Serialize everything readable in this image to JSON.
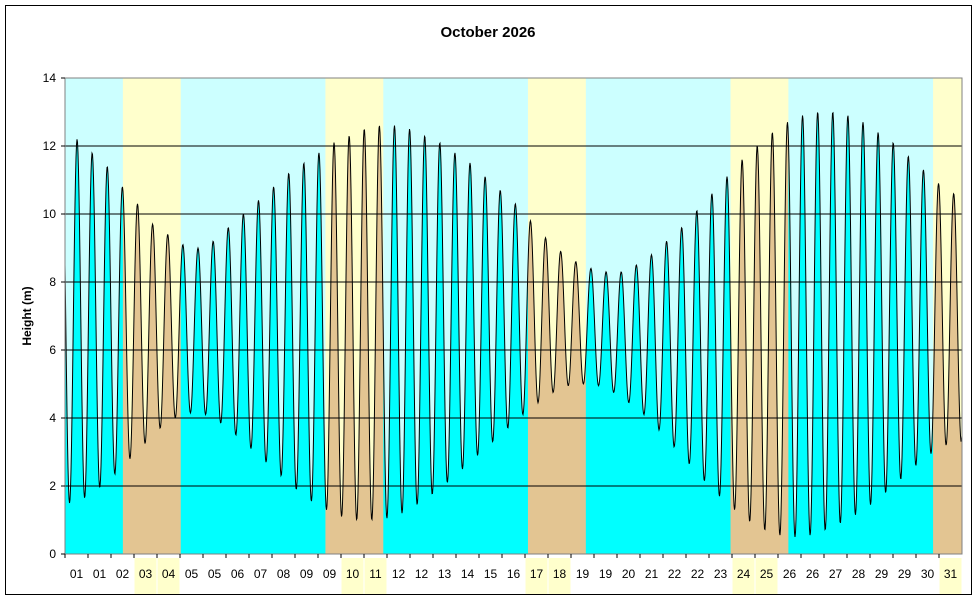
{
  "chart_data": {
    "type": "area",
    "title": "October 2026",
    "xlabel": "",
    "ylabel": "Height (m)",
    "ylim": [
      0,
      14
    ],
    "yticks": [
      0,
      2,
      4,
      6,
      8,
      10,
      12,
      14
    ],
    "grid": true,
    "legend": "none",
    "x_tick_labels": [
      "01",
      "01",
      "02",
      "03",
      "04",
      "05",
      "05",
      "06",
      "07",
      "08",
      "09",
      "09",
      "10",
      "11",
      "12",
      "12",
      "13",
      "14",
      "15",
      "16",
      "17",
      "18",
      "19",
      "19",
      "20",
      "21",
      "22",
      "22",
      "23",
      "24",
      "25",
      "26",
      "26",
      "27",
      "28",
      "29",
      "29",
      "30",
      "31"
    ],
    "highlighted_ticks": [
      "03",
      "04",
      "10",
      "11",
      "17",
      "18",
      "24",
      "25",
      "31"
    ],
    "weekend_bands_days": [
      [
        3,
        4
      ],
      [
        10,
        11
      ],
      [
        17,
        18
      ],
      [
        24,
        25
      ],
      [
        31,
        31
      ]
    ],
    "series": [
      {
        "values_high_water_per_tide": [
          12.2,
          11.8,
          11.4,
          10.8,
          10.3,
          9.7,
          9.4,
          9.1,
          9.0,
          9.2,
          9.6,
          10.0,
          10.4,
          10.8,
          11.2,
          11.5,
          11.8,
          12.1,
          12.3,
          12.5,
          12.6,
          12.6,
          12.5,
          12.3,
          12.1,
          11.8,
          11.5,
          11.1,
          10.7,
          10.3,
          9.8,
          9.3,
          8.9,
          8.6,
          8.4,
          8.3,
          8.3,
          8.5,
          8.8,
          9.2,
          9.6,
          10.1,
          10.6,
          11.1,
          11.6,
          12.0,
          12.4,
          12.7,
          12.9,
          13.0,
          13.0,
          12.9,
          12.7,
          12.4,
          12.1,
          11.7,
          11.3,
          10.9,
          10.6
        ],
        "values_low_water_per_tide": [
          1.5,
          1.8,
          2.1,
          2.6,
          3.0,
          3.5,
          3.9,
          4.1,
          4.2,
          4.0,
          3.7,
          3.3,
          2.9,
          2.5,
          2.1,
          1.7,
          1.4,
          1.2,
          1.0,
          1.0,
          1.0,
          1.1,
          1.3,
          1.6,
          1.9,
          2.3,
          2.7,
          3.1,
          3.5,
          3.9,
          4.3,
          4.6,
          4.9,
          5.0,
          5.0,
          4.9,
          4.6,
          4.3,
          3.9,
          3.4,
          2.9,
          2.4,
          1.9,
          1.5,
          1.1,
          0.8,
          0.6,
          0.5,
          0.5,
          0.6,
          0.8,
          1.0,
          1.3,
          1.6,
          2.0,
          2.4,
          2.8,
          3.1,
          3.3
        ]
      }
    ],
    "colors": {
      "plot_background": "#ccffff",
      "weekend_background": "#ffffcc",
      "fill_weekday": "#00ffff",
      "fill_weekend": "#e3c592",
      "line": "#000000",
      "gridline": "#000000"
    }
  }
}
